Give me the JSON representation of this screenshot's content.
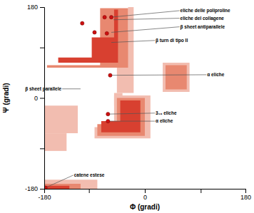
{
  "chart_data": {
    "type": "scatter",
    "xlabel": "Φ (gradi)",
    "ylabel": "Ψ (gradi)",
    "xlim": [
      -180,
      180
    ],
    "ylim": [
      -180,
      180
    ],
    "xticks": [
      -180,
      {
        "value": -100,
        "label": null
      },
      0,
      {
        "value": 100,
        "label": null
      },
      180
    ],
    "yticks": [
      -180,
      {
        "value": -100,
        "label": null
      },
      0,
      {
        "value": 100,
        "label": null
      },
      180
    ],
    "grid": false,
    "color": "#cc1010",
    "x": [
      -72,
      -60,
      -112,
      -90,
      -68,
      -62,
      -66,
      -66,
      -178
    ],
    "values": [
      160,
      160,
      148,
      130,
      128,
      45,
      -32,
      -46,
      -178
    ],
    "regions": [
      {
        "color": "#f2bdb0",
        "x": [
          -180,
          -20,
          -20,
          -30,
          -30,
          -50,
          -50,
          -180
        ],
        "y": [
          50,
          50,
          180,
          180,
          130,
          130,
          50,
          50
        ]
      },
      {
        "color": "#f2bdb0",
        "x": [
          -180,
          -20,
          -20,
          -50,
          -50,
          -180
        ],
        "y": [
          10,
          10,
          50,
          50,
          10,
          10
        ]
      },
      {
        "color": "#f2bdb0",
        "x": [
          -180,
          -40,
          -40,
          -55,
          -55,
          -180
        ],
        "y": [
          -15,
          -15,
          10,
          10,
          -15,
          -15
        ]
      },
      {
        "color": "#f2bdb0",
        "x": [
          -180,
          -120,
          -120,
          -180
        ],
        "y": [
          -15,
          -15,
          -70,
          -70
        ]
      },
      {
        "color": "#f2bdb0",
        "x": [
          -180,
          -140,
          -140,
          -180
        ],
        "y": [
          -70,
          -70,
          -105,
          -105
        ]
      },
      {
        "color": "#f2bdb0",
        "x": [
          -90,
          10,
          10,
          -55,
          -55,
          -90
        ],
        "y": [
          -80,
          -80,
          5,
          5,
          -58,
          -58
        ]
      },
      {
        "color": "#f2bdb0",
        "x": [
          32,
          80,
          80,
          32
        ],
        "y": [
          12,
          12,
          70,
          70
        ]
      },
      {
        "color": "#f2bdb0",
        "x": [
          -180,
          -85,
          -85,
          -180
        ],
        "y": [
          -180,
          -180,
          -162,
          -162
        ]
      },
      {
        "color": "#e88870",
        "x": [
          -175,
          -30,
          -30,
          -80,
          -80,
          -175
        ],
        "y": [
          60,
          60,
          178,
          178,
          65,
          65
        ]
      },
      {
        "color": "#e88870",
        "x": [
          -85,
          0,
          0,
          -50,
          -50,
          -85
        ],
        "y": [
          -75,
          -75,
          0,
          0,
          -52,
          -52
        ]
      },
      {
        "color": "#e88870",
        "x": [
          37,
          75,
          75,
          37
        ],
        "y": [
          17,
          17,
          65,
          65
        ]
      },
      {
        "color": "#e88870",
        "x": [
          -180,
          -115,
          -115,
          -180
        ],
        "y": [
          -180,
          -180,
          -170,
          -170
        ]
      },
      {
        "color": "#d84030",
        "x": [
          -165,
          -48,
          -48,
          -55,
          -55,
          -95,
          -95,
          -155,
          -155,
          -165
        ],
        "y": [
          70,
          70,
          175,
          175,
          120,
          120,
          80,
          80,
          70,
          70
        ]
      },
      {
        "color": "#d84030",
        "x": [
          -78,
          -8,
          -8,
          -44,
          -44,
          -78
        ],
        "y": [
          -68,
          -68,
          -5,
          -5,
          -46,
          -46
        ]
      },
      {
        "color": "#d84030",
        "x": [
          -180,
          -135,
          -135,
          -180
        ],
        "y": [
          -180,
          -180,
          -174,
          -174
        ]
      }
    ],
    "annotations": [
      {
        "text": "eliche delle poliproline",
        "xy": [
          -62,
          160
        ],
        "xytext": [
          62,
          173
        ]
      },
      {
        "text": "eliche del collagene",
        "xy": [
          -56,
          155
        ],
        "xytext": [
          62,
          158
        ]
      },
      {
        "text": "β sheet antiparallele",
        "xy": [
          -60,
          130
        ],
        "xytext": [
          62,
          141
        ]
      },
      {
        "text": "β turn di tipo II",
        "xy": [
          -60,
          110
        ],
        "xytext": [
          18,
          114
        ]
      },
      {
        "text": "α eliche",
        "xy": [
          -62,
          45
        ],
        "xytext": [
          110,
          46
        ]
      },
      {
        "text": "β sheet parallele",
        "xy": [
          -115,
          18
        ],
        "xytext": [
          -148,
          18
        ]
      },
      {
        "text": "3₁₀ eliche",
        "xy": [
          -66,
          -32
        ],
        "xytext": [
          18,
          -30
        ]
      },
      {
        "text": "α eliche",
        "xy": [
          -66,
          -46
        ],
        "xytext": [
          18,
          -46
        ]
      },
      {
        "text": "catene estese",
        "xy": [
          -178,
          -178
        ],
        "xytext": [
          -128,
          -153
        ]
      }
    ]
  }
}
